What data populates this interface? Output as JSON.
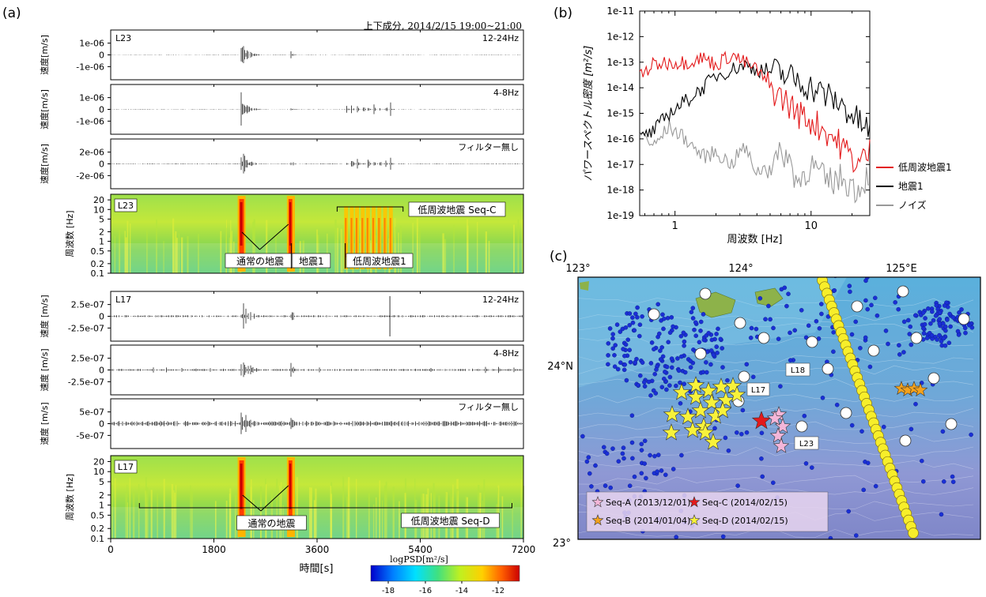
{
  "panel_labels": {
    "a": "(a)",
    "b": "(b)",
    "c": "(c)"
  },
  "header": "上下成分, 2014/2/15 19:00~21:00",
  "colorbar": {
    "label": "logPSD[m²/s]",
    "ticks": [
      "-18",
      "-16",
      "-14",
      "-12"
    ]
  },
  "colors": {
    "spec_bg": "#7fd454",
    "red_curve": "#e31a1c",
    "black_curve": "#000000",
    "gray_curve": "#999999",
    "star_pink": "#f4b6d9",
    "star_orange": "#f4a21c",
    "star_red": "#e41a1c",
    "star_yellow": "#f8f23a",
    "eq_dot": "#1a2fd6"
  },
  "waveforms": [
    {
      "station": "L23",
      "band": "12-24Hz",
      "ylabel": "速度[m/s]",
      "yticks": [
        "1e-06",
        "0",
        "-1e-06"
      ]
    },
    {
      "station": "",
      "band": "4-8Hz",
      "ylabel": "速度[m/s]",
      "yticks": [
        "1e-06",
        "0",
        "-1e-06"
      ]
    },
    {
      "station": "",
      "band": "フィルター無し",
      "ylabel": "速度[m/s]",
      "yticks": [
        "2e-06",
        "0",
        "-2e-06"
      ]
    },
    {
      "station": "L17",
      "band": "12-24Hz",
      "ylabel": "速度 [m/s]",
      "yticks": [
        "2.5e-07",
        "0",
        "-2.5e-07"
      ]
    },
    {
      "station": "",
      "band": "4-8Hz",
      "ylabel": "速度 [m/s]",
      "yticks": [
        "2.5e-07",
        "0",
        "-2.5e-07"
      ]
    },
    {
      "station": "",
      "band": "フィルター無し",
      "ylabel": "速度 [m/s]",
      "yticks": [
        "5e-07",
        "0",
        "-5e-07"
      ]
    }
  ],
  "spectrograms": [
    {
      "station": "L23",
      "ylabel": "周波数 [Hz]",
      "yticks": [
        "20",
        "10",
        "5",
        "2",
        "1",
        "0.5",
        "0.2",
        "0.1"
      ],
      "ann": {
        "seq": "低周波地震 Seq-C",
        "normal": "通常の地震",
        "eq1": "地震1",
        "lfe1": "低周波地震1"
      }
    },
    {
      "station": "L17",
      "ylabel": "周波数 [Hz]",
      "yticks": [
        "20",
        "10",
        "5",
        "2",
        "1",
        "0.5",
        "0.2",
        "0.1"
      ],
      "ann": {
        "seq": "低周波地震 Seq-D",
        "normal": "通常の地震"
      }
    }
  ],
  "time_axis": {
    "label": "時間[s]",
    "ticks": [
      "0",
      "1800",
      "3600",
      "5400",
      "7200"
    ]
  },
  "chart_data": {
    "type": "line",
    "xlabel": "周波数 [Hz]",
    "ylabel": "パワースペクトル密度 [m²/s]",
    "xscale": "log",
    "yscale": "log",
    "xlim": [
      0.55,
      27
    ],
    "ylim": [
      1e-19,
      1e-11
    ],
    "xticks": [
      "1",
      "10"
    ],
    "yticks": [
      "1e-11",
      "1e-12",
      "1e-13",
      "1e-14",
      "1e-15",
      "1e-16",
      "1e-17",
      "1e-18",
      "1e-19"
    ],
    "legend_position": "right",
    "series": [
      {
        "name": "低周波地震1",
        "x": [
          0.55,
          0.7,
          0.9,
          1.2,
          1.6,
          2.0,
          2.6,
          3.2,
          4.0,
          5.0,
          6.5,
          8.0,
          10.0,
          13.0,
          17.0,
          22.0,
          27.0
        ],
        "y": [
          3e-14,
          8e-14,
          1e-13,
          1e-13,
          1.5e-13,
          8e-14,
          2e-13,
          1e-13,
          5e-14,
          1e-14,
          3e-15,
          1e-15,
          5e-16,
          2e-16,
          5e-17,
          1e-17,
          3e-17
        ]
      },
      {
        "name": "地震1",
        "x": [
          0.55,
          0.7,
          0.9,
          1.2,
          1.6,
          2.0,
          2.6,
          3.2,
          4.0,
          5.0,
          6.5,
          8.0,
          10.0,
          13.0,
          17.0,
          22.0,
          27.0
        ],
        "y": [
          1e-16,
          2e-16,
          1e-15,
          3e-15,
          1e-14,
          3e-14,
          5e-14,
          8e-14,
          5e-14,
          5e-14,
          3e-14,
          2e-14,
          1e-14,
          5e-15,
          2e-15,
          5e-16,
          2e-16
        ]
      },
      {
        "name": "ノイズ",
        "x": [
          0.55,
          0.7,
          0.9,
          1.2,
          1.6,
          2.0,
          2.6,
          3.2,
          4.0,
          5.0,
          6.5,
          8.0,
          10.0,
          13.0,
          17.0,
          22.0,
          27.0
        ],
        "y": [
          2e-16,
          5e-17,
          3e-16,
          1e-16,
          2e-17,
          3e-17,
          1e-17,
          5e-17,
          5e-18,
          1e-17,
          3e-17,
          2e-18,
          1e-17,
          2e-18,
          3e-18,
          1e-18,
          5e-18
        ]
      }
    ]
  },
  "map": {
    "lon_labels": [
      "123°",
      "124°",
      "125°E"
    ],
    "lat_labels": [
      "24°N",
      "23°"
    ],
    "stations": [
      "L18",
      "L17",
      "L23"
    ],
    "legend": [
      "Seq-A (2013/12/01)",
      "Seq-C (2014/02/15)",
      "Seq-B (2014/01/04)",
      "Seq-D (2014/02/15)"
    ]
  }
}
